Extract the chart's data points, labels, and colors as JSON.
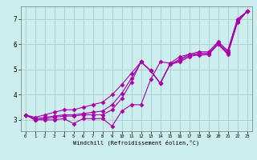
{
  "xlabel": "Windchill (Refroidissement éolien,°C)",
  "bg_color": "#cceeee",
  "grid_color": "#aacccc",
  "line_color": "#aa00aa",
  "xlim": [
    -0.5,
    23.5
  ],
  "ylim": [
    2.55,
    7.5
  ],
  "yticks": [
    3,
    4,
    5,
    6,
    7
  ],
  "xticks": [
    0,
    1,
    2,
    3,
    4,
    5,
    6,
    7,
    8,
    9,
    10,
    11,
    12,
    13,
    14,
    15,
    16,
    17,
    18,
    19,
    20,
    21,
    22,
    23
  ],
  "series": [
    [
      3.2,
      3.0,
      3.0,
      3.0,
      3.05,
      2.85,
      3.05,
      3.05,
      3.05,
      2.75,
      3.35,
      3.6,
      3.6,
      4.6,
      5.3,
      5.25,
      5.5,
      5.6,
      5.55,
      5.6,
      6.0,
      5.6,
      6.85,
      7.3
    ],
    [
      3.2,
      3.0,
      3.05,
      3.1,
      3.15,
      3.15,
      3.2,
      3.2,
      3.2,
      3.4,
      3.85,
      4.5,
      5.3,
      4.95,
      4.45,
      5.2,
      5.3,
      5.5,
      5.6,
      5.6,
      6.0,
      5.65,
      6.9,
      7.3
    ],
    [
      3.2,
      3.05,
      3.1,
      3.15,
      3.2,
      3.2,
      3.25,
      3.3,
      3.35,
      3.6,
      4.05,
      4.65,
      5.3,
      4.95,
      4.45,
      5.2,
      5.35,
      5.55,
      5.65,
      5.65,
      6.05,
      5.7,
      6.95,
      7.3
    ],
    [
      3.2,
      3.1,
      3.2,
      3.3,
      3.4,
      3.4,
      3.5,
      3.6,
      3.7,
      4.0,
      4.4,
      4.85,
      5.3,
      4.95,
      4.45,
      5.2,
      5.4,
      5.6,
      5.7,
      5.7,
      6.1,
      5.75,
      7.0,
      7.3
    ]
  ],
  "marker": "D",
  "marker_size": 2.5,
  "linewidth": 0.8
}
